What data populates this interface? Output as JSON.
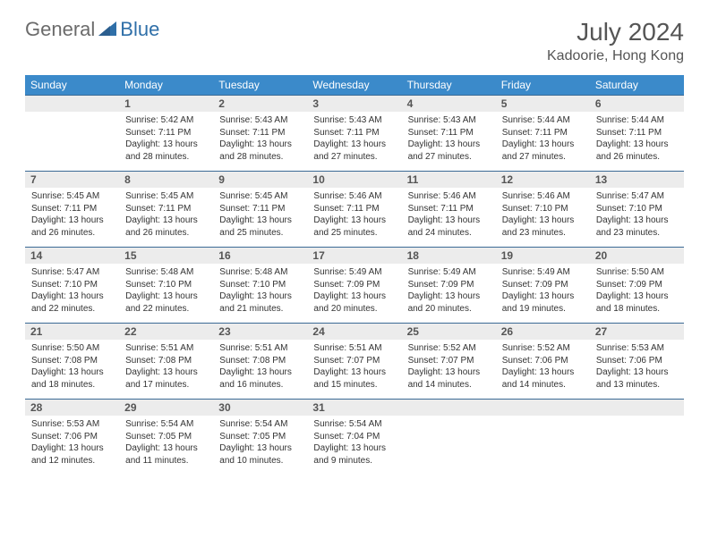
{
  "brand": {
    "part1": "General",
    "part2": "Blue"
  },
  "title": "July 2024",
  "subtitle": "Kadoorie, Hong Kong",
  "colors": {
    "header_bg": "#3b8aca",
    "header_text": "#ffffff",
    "row_divider": "#3b6a95",
    "daynum_bg": "#ececec",
    "text": "#333333",
    "brand_gray": "#6b6b6b",
    "brand_blue": "#2f6fa8"
  },
  "typography": {
    "title_fontsize": 28,
    "subtitle_fontsize": 16,
    "dayhead_fontsize": 12,
    "daycell_fontsize": 10
  },
  "day_headers": [
    "Sunday",
    "Monday",
    "Tuesday",
    "Wednesday",
    "Thursday",
    "Friday",
    "Saturday"
  ],
  "weeks": [
    [
      null,
      {
        "d": "1",
        "sr": "Sunrise: 5:42 AM",
        "ss": "Sunset: 7:11 PM",
        "dl1": "Daylight: 13 hours",
        "dl2": "and 28 minutes."
      },
      {
        "d": "2",
        "sr": "Sunrise: 5:43 AM",
        "ss": "Sunset: 7:11 PM",
        "dl1": "Daylight: 13 hours",
        "dl2": "and 28 minutes."
      },
      {
        "d": "3",
        "sr": "Sunrise: 5:43 AM",
        "ss": "Sunset: 7:11 PM",
        "dl1": "Daylight: 13 hours",
        "dl2": "and 27 minutes."
      },
      {
        "d": "4",
        "sr": "Sunrise: 5:43 AM",
        "ss": "Sunset: 7:11 PM",
        "dl1": "Daylight: 13 hours",
        "dl2": "and 27 minutes."
      },
      {
        "d": "5",
        "sr": "Sunrise: 5:44 AM",
        "ss": "Sunset: 7:11 PM",
        "dl1": "Daylight: 13 hours",
        "dl2": "and 27 minutes."
      },
      {
        "d": "6",
        "sr": "Sunrise: 5:44 AM",
        "ss": "Sunset: 7:11 PM",
        "dl1": "Daylight: 13 hours",
        "dl2": "and 26 minutes."
      }
    ],
    [
      {
        "d": "7",
        "sr": "Sunrise: 5:45 AM",
        "ss": "Sunset: 7:11 PM",
        "dl1": "Daylight: 13 hours",
        "dl2": "and 26 minutes."
      },
      {
        "d": "8",
        "sr": "Sunrise: 5:45 AM",
        "ss": "Sunset: 7:11 PM",
        "dl1": "Daylight: 13 hours",
        "dl2": "and 26 minutes."
      },
      {
        "d": "9",
        "sr": "Sunrise: 5:45 AM",
        "ss": "Sunset: 7:11 PM",
        "dl1": "Daylight: 13 hours",
        "dl2": "and 25 minutes."
      },
      {
        "d": "10",
        "sr": "Sunrise: 5:46 AM",
        "ss": "Sunset: 7:11 PM",
        "dl1": "Daylight: 13 hours",
        "dl2": "and 25 minutes."
      },
      {
        "d": "11",
        "sr": "Sunrise: 5:46 AM",
        "ss": "Sunset: 7:11 PM",
        "dl1": "Daylight: 13 hours",
        "dl2": "and 24 minutes."
      },
      {
        "d": "12",
        "sr": "Sunrise: 5:46 AM",
        "ss": "Sunset: 7:10 PM",
        "dl1": "Daylight: 13 hours",
        "dl2": "and 23 minutes."
      },
      {
        "d": "13",
        "sr": "Sunrise: 5:47 AM",
        "ss": "Sunset: 7:10 PM",
        "dl1": "Daylight: 13 hours",
        "dl2": "and 23 minutes."
      }
    ],
    [
      {
        "d": "14",
        "sr": "Sunrise: 5:47 AM",
        "ss": "Sunset: 7:10 PM",
        "dl1": "Daylight: 13 hours",
        "dl2": "and 22 minutes."
      },
      {
        "d": "15",
        "sr": "Sunrise: 5:48 AM",
        "ss": "Sunset: 7:10 PM",
        "dl1": "Daylight: 13 hours",
        "dl2": "and 22 minutes."
      },
      {
        "d": "16",
        "sr": "Sunrise: 5:48 AM",
        "ss": "Sunset: 7:10 PM",
        "dl1": "Daylight: 13 hours",
        "dl2": "and 21 minutes."
      },
      {
        "d": "17",
        "sr": "Sunrise: 5:49 AM",
        "ss": "Sunset: 7:09 PM",
        "dl1": "Daylight: 13 hours",
        "dl2": "and 20 minutes."
      },
      {
        "d": "18",
        "sr": "Sunrise: 5:49 AM",
        "ss": "Sunset: 7:09 PM",
        "dl1": "Daylight: 13 hours",
        "dl2": "and 20 minutes."
      },
      {
        "d": "19",
        "sr": "Sunrise: 5:49 AM",
        "ss": "Sunset: 7:09 PM",
        "dl1": "Daylight: 13 hours",
        "dl2": "and 19 minutes."
      },
      {
        "d": "20",
        "sr": "Sunrise: 5:50 AM",
        "ss": "Sunset: 7:09 PM",
        "dl1": "Daylight: 13 hours",
        "dl2": "and 18 minutes."
      }
    ],
    [
      {
        "d": "21",
        "sr": "Sunrise: 5:50 AM",
        "ss": "Sunset: 7:08 PM",
        "dl1": "Daylight: 13 hours",
        "dl2": "and 18 minutes."
      },
      {
        "d": "22",
        "sr": "Sunrise: 5:51 AM",
        "ss": "Sunset: 7:08 PM",
        "dl1": "Daylight: 13 hours",
        "dl2": "and 17 minutes."
      },
      {
        "d": "23",
        "sr": "Sunrise: 5:51 AM",
        "ss": "Sunset: 7:08 PM",
        "dl1": "Daylight: 13 hours",
        "dl2": "and 16 minutes."
      },
      {
        "d": "24",
        "sr": "Sunrise: 5:51 AM",
        "ss": "Sunset: 7:07 PM",
        "dl1": "Daylight: 13 hours",
        "dl2": "and 15 minutes."
      },
      {
        "d": "25",
        "sr": "Sunrise: 5:52 AM",
        "ss": "Sunset: 7:07 PM",
        "dl1": "Daylight: 13 hours",
        "dl2": "and 14 minutes."
      },
      {
        "d": "26",
        "sr": "Sunrise: 5:52 AM",
        "ss": "Sunset: 7:06 PM",
        "dl1": "Daylight: 13 hours",
        "dl2": "and 14 minutes."
      },
      {
        "d": "27",
        "sr": "Sunrise: 5:53 AM",
        "ss": "Sunset: 7:06 PM",
        "dl1": "Daylight: 13 hours",
        "dl2": "and 13 minutes."
      }
    ],
    [
      {
        "d": "28",
        "sr": "Sunrise: 5:53 AM",
        "ss": "Sunset: 7:06 PM",
        "dl1": "Daylight: 13 hours",
        "dl2": "and 12 minutes."
      },
      {
        "d": "29",
        "sr": "Sunrise: 5:54 AM",
        "ss": "Sunset: 7:05 PM",
        "dl1": "Daylight: 13 hours",
        "dl2": "and 11 minutes."
      },
      {
        "d": "30",
        "sr": "Sunrise: 5:54 AM",
        "ss": "Sunset: 7:05 PM",
        "dl1": "Daylight: 13 hours",
        "dl2": "and 10 minutes."
      },
      {
        "d": "31",
        "sr": "Sunrise: 5:54 AM",
        "ss": "Sunset: 7:04 PM",
        "dl1": "Daylight: 13 hours",
        "dl2": "and 9 minutes."
      },
      null,
      null,
      null
    ]
  ]
}
